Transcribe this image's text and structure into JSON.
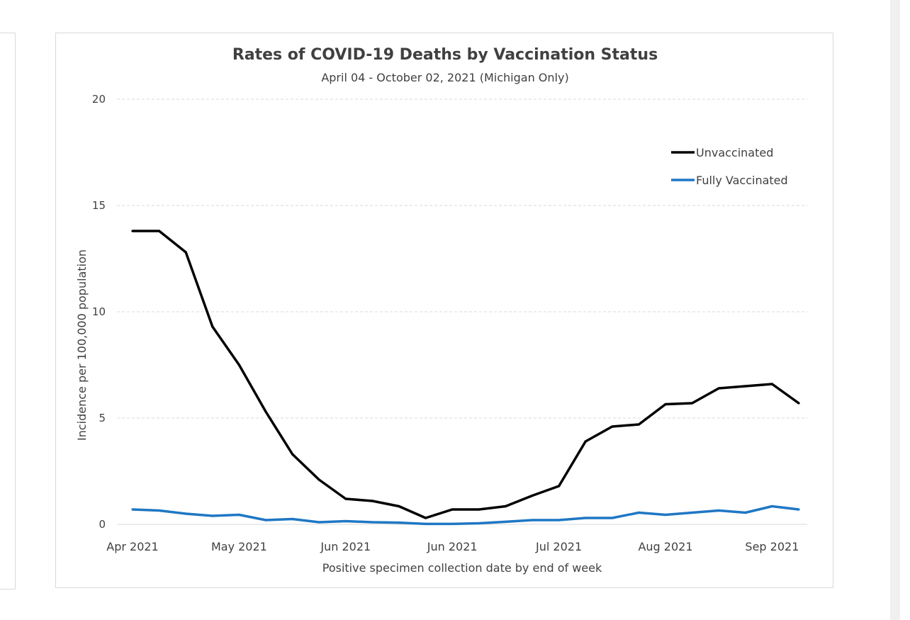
{
  "colors": {
    "unvaccinated": "#000000",
    "fully_vaccinated": "#1f77c4",
    "grid": "#d9d9d9",
    "text": "#404040",
    "title": "#404040"
  },
  "chart_data": {
    "type": "line",
    "title": "Rates of COVID-19 Deaths by Vaccination Status",
    "subtitle": "April 04 - October 02, 2021 (Michigan Only)",
    "xlabel": "Positive specimen collection date by end of week",
    "ylabel": "Incidence per 100,000 population",
    "ylim": [
      0,
      20
    ],
    "yticks": [
      0,
      5,
      10,
      15,
      20
    ],
    "x_tick_labels": [
      "Apr 2021",
      "May 2021",
      "Jun 2021",
      "Jun 2021",
      "Jul 2021",
      "Aug 2021",
      "Sep 2021"
    ],
    "x_tick_week_index": [
      0,
      4,
      8,
      12,
      16,
      20,
      24
    ],
    "week_count": 26,
    "grid": "horizontal dashed",
    "legend_placement": "top-right",
    "series": [
      {
        "name": "Unvaccinated",
        "color": "#000000",
        "values": [
          13.8,
          13.8,
          12.8,
          9.3,
          7.5,
          5.3,
          3.3,
          2.1,
          1.2,
          1.1,
          0.85,
          0.3,
          0.7,
          0.7,
          0.85,
          1.35,
          1.8,
          3.9,
          4.6,
          4.7,
          5.65,
          5.7,
          6.4,
          6.5,
          6.6,
          5.7
        ]
      },
      {
        "name": "Fully Vaccinated",
        "color": "#1f77c4",
        "values": [
          0.7,
          0.65,
          0.5,
          0.4,
          0.45,
          0.2,
          0.25,
          0.1,
          0.15,
          0.1,
          0.08,
          0.02,
          0.02,
          0.05,
          0.12,
          0.2,
          0.2,
          0.3,
          0.3,
          0.55,
          0.45,
          0.55,
          0.65,
          0.55,
          0.85,
          0.7
        ]
      }
    ]
  }
}
